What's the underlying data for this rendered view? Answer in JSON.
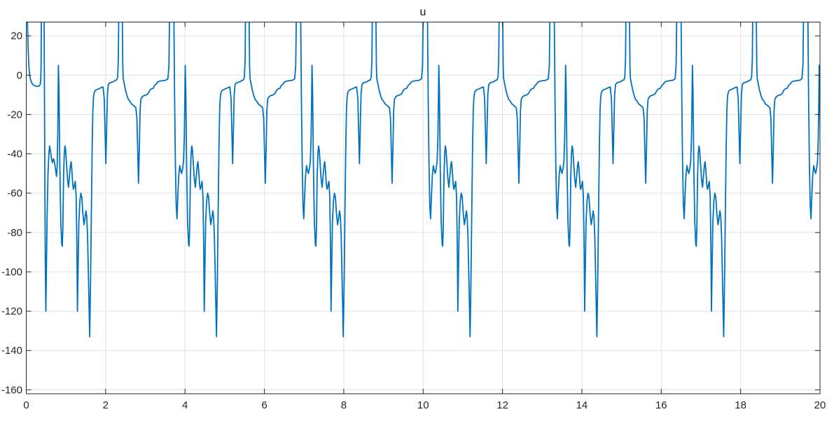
{
  "figure": {
    "title": "u",
    "background_color": "#ffffff",
    "axes_box_color": "#262626",
    "grid_color": "#e0e0e0",
    "tick_label_color": "#262626",
    "line_color": "#0072bd",
    "line_width": 1.8
  },
  "chart_data": {
    "type": "line",
    "title": "u",
    "xlabel": "",
    "ylabel": "",
    "legend": null,
    "grid": true,
    "box": true,
    "tick_direction": "in",
    "xlim": [
      0,
      20
    ],
    "ylim": [
      -162,
      27
    ],
    "x_ticks": [
      0,
      2,
      4,
      6,
      8,
      10,
      12,
      14,
      16,
      18,
      20
    ],
    "y_ticks": [
      -160,
      -140,
      -120,
      -100,
      -80,
      -60,
      -40,
      -20,
      0,
      20
    ],
    "series": [
      {
        "name": "u",
        "color": "#0072bd",
        "description": "Periodic control-signal limit cycle. Initial transient decays from above axis top to a -5.5 plateau, then a repeating pattern every 3.195 s: clipped upward spike, plunge to -120, oscillation cluster between -33 and -76, deepest notch -133, recovery plateau near -7, narrow notch -45, flat at -3, tall clipped spike, slow decay -3 to -16, narrow notch -55, stair-step rise -10 to -3, wide clipped spike, plunge to -74, bump near -46, then a narrow spike peaking near +5.",
        "waveform": {
          "period": 3.195,
          "first_cycle_start_t": 0.81,
          "upper_clip_value": 27,
          "transient_points": [
            [
              0.0,
              60
            ],
            [
              0.02,
              40
            ],
            [
              0.032,
              26
            ],
            [
              0.045,
              15
            ],
            [
              0.058,
              8
            ],
            [
              0.072,
              3
            ],
            [
              0.09,
              -0.5
            ],
            [
              0.11,
              -2.4
            ],
            [
              0.135,
              -3.8
            ],
            [
              0.165,
              -4.7
            ],
            [
              0.2,
              -5.3
            ],
            [
              0.24,
              -5.6
            ],
            [
              0.285,
              -5.7
            ],
            [
              0.325,
              -5.5
            ],
            [
              0.35,
              -4.8
            ],
            [
              0.365,
              -2.5
            ],
            [
              0.374,
              5
            ],
            [
              0.381,
              30
            ],
            [
              0.39,
              60
            ],
            [
              0.438,
              60
            ],
            [
              0.45,
              25
            ],
            [
              0.46,
              -15
            ],
            [
              0.47,
              -60
            ],
            [
              0.48,
              -95
            ],
            [
              0.493,
              -120
            ],
            [
              0.508,
              -98
            ],
            [
              0.525,
              -72
            ],
            [
              0.548,
              -50
            ],
            [
              0.57,
              -40
            ],
            [
              0.588,
              -36
            ],
            [
              0.61,
              -38.5
            ],
            [
              0.64,
              -43
            ],
            [
              0.662,
              -44.5
            ],
            [
              0.685,
              -42.5
            ],
            [
              0.705,
              -43.5
            ],
            [
              0.735,
              -47.5
            ],
            [
              0.762,
              -51.5
            ],
            [
              0.78,
              -46
            ],
            [
              0.795,
              -28
            ],
            [
              0.804,
              -8
            ]
          ],
          "period_points": [
            [
              0.0,
              5.0
            ],
            [
              0.015,
              -8
            ],
            [
              0.035,
              -45
            ],
            [
              0.06,
              -75
            ],
            [
              0.085,
              -86
            ],
            [
              0.098,
              -87
            ],
            [
              0.112,
              -78
            ],
            [
              0.13,
              -52
            ],
            [
              0.148,
              -40
            ],
            [
              0.165,
              -36
            ],
            [
              0.182,
              -38
            ],
            [
              0.205,
              -45
            ],
            [
              0.23,
              -53
            ],
            [
              0.255,
              -57
            ],
            [
              0.28,
              -51
            ],
            [
              0.305,
              -45.5
            ],
            [
              0.32,
              -44
            ],
            [
              0.338,
              -48
            ],
            [
              0.36,
              -55
            ],
            [
              0.378,
              -58
            ],
            [
              0.4,
              -56.5
            ],
            [
              0.425,
              -54
            ],
            [
              0.448,
              -62
            ],
            [
              0.465,
              -85
            ],
            [
              0.48,
              -120
            ],
            [
              0.495,
              -100
            ],
            [
              0.515,
              -75
            ],
            [
              0.54,
              -64
            ],
            [
              0.565,
              -60
            ],
            [
              0.59,
              -62
            ],
            [
              0.615,
              -70
            ],
            [
              0.645,
              -76
            ],
            [
              0.668,
              -73
            ],
            [
              0.695,
              -69
            ],
            [
              0.715,
              -72
            ],
            [
              0.735,
              -82
            ],
            [
              0.76,
              -105
            ],
            [
              0.788,
              -133
            ],
            [
              0.81,
              -105
            ],
            [
              0.83,
              -70
            ],
            [
              0.85,
              -38
            ],
            [
              0.868,
              -18
            ],
            [
              0.885,
              -11
            ],
            [
              0.905,
              -8.6
            ],
            [
              0.93,
              -7.8
            ],
            [
              0.97,
              -7.3
            ],
            [
              1.02,
              -6.9
            ],
            [
              1.07,
              -6.4
            ],
            [
              1.125,
              -6.0
            ],
            [
              1.155,
              -12
            ],
            [
              1.175,
              -28
            ],
            [
              1.195,
              -45
            ],
            [
              1.215,
              -28
            ],
            [
              1.235,
              -10
            ],
            [
              1.258,
              -4.8
            ],
            [
              1.29,
              -3.9
            ],
            [
              1.34,
              -3.6
            ],
            [
              1.39,
              -3.3
            ],
            [
              1.425,
              -2.7
            ],
            [
              1.47,
              -2.4
            ],
            [
              1.492,
              -1.0
            ],
            [
              1.51,
              8
            ],
            [
              1.522,
              35
            ],
            [
              1.532,
              60
            ],
            [
              1.598,
              60
            ],
            [
              1.61,
              30
            ],
            [
              1.622,
              5
            ],
            [
              1.632,
              -1.5
            ],
            [
              1.655,
              -4.0
            ],
            [
              1.69,
              -7.5
            ],
            [
              1.73,
              -10.5
            ],
            [
              1.762,
              -12.3
            ],
            [
              1.8,
              -13.2
            ],
            [
              1.84,
              -14.6
            ],
            [
              1.878,
              -15.2
            ],
            [
              1.915,
              -15.8
            ],
            [
              1.952,
              -16.6
            ],
            [
              1.978,
              -22
            ],
            [
              2.0,
              -40
            ],
            [
              2.018,
              -55
            ],
            [
              2.038,
              -38
            ],
            [
              2.058,
              -18
            ],
            [
              2.078,
              -12.2
            ],
            [
              2.115,
              -10.9
            ],
            [
              2.165,
              -10.3
            ],
            [
              2.22,
              -10.0
            ],
            [
              2.262,
              -9.3
            ],
            [
              2.3,
              -7.8
            ],
            [
              2.335,
              -7.0
            ],
            [
              2.385,
              -6.7
            ],
            [
              2.425,
              -5.2
            ],
            [
              2.465,
              -4.5
            ],
            [
              2.505,
              -3.4
            ],
            [
              2.555,
              -3.0
            ],
            [
              2.625,
              -2.8
            ],
            [
              2.7,
              -2.6
            ],
            [
              2.76,
              -1.8
            ],
            [
              2.785,
              5
            ],
            [
              2.8,
              30
            ],
            [
              2.812,
              60
            ],
            [
              2.895,
              60
            ],
            [
              2.912,
              25
            ],
            [
              2.928,
              -12
            ],
            [
              2.948,
              -45
            ],
            [
              2.968,
              -66
            ],
            [
              2.988,
              -73
            ],
            [
              3.008,
              -62
            ],
            [
              3.032,
              -51
            ],
            [
              3.058,
              -46
            ],
            [
              3.082,
              -48.5
            ],
            [
              3.105,
              -50
            ],
            [
              3.13,
              -47.5
            ],
            [
              3.152,
              -44
            ],
            [
              3.172,
              -32
            ],
            [
              3.186,
              -12
            ]
          ]
        }
      }
    ]
  }
}
